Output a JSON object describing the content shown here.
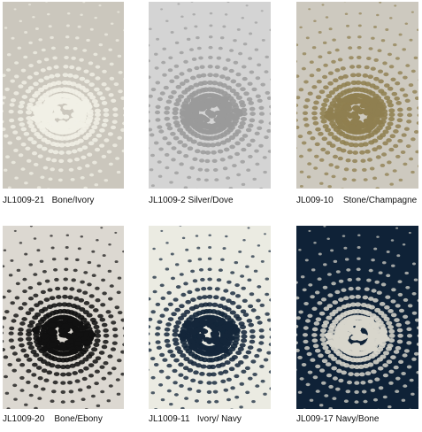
{
  "swatches": [
    {
      "label": "JL1009-21   Bone/Ivory"
    },
    {
      "label": "JL1009-2 Silver/Dove"
    },
    {
      "label": "JL009-10    Stone/Champagne"
    },
    {
      "label": "JL1009-20    Bone/Ebony"
    },
    {
      "label": "JL1009-11   Ivory/ Navy"
    },
    {
      "label": "JL009-17 Navy/Bone"
    }
  ]
}
